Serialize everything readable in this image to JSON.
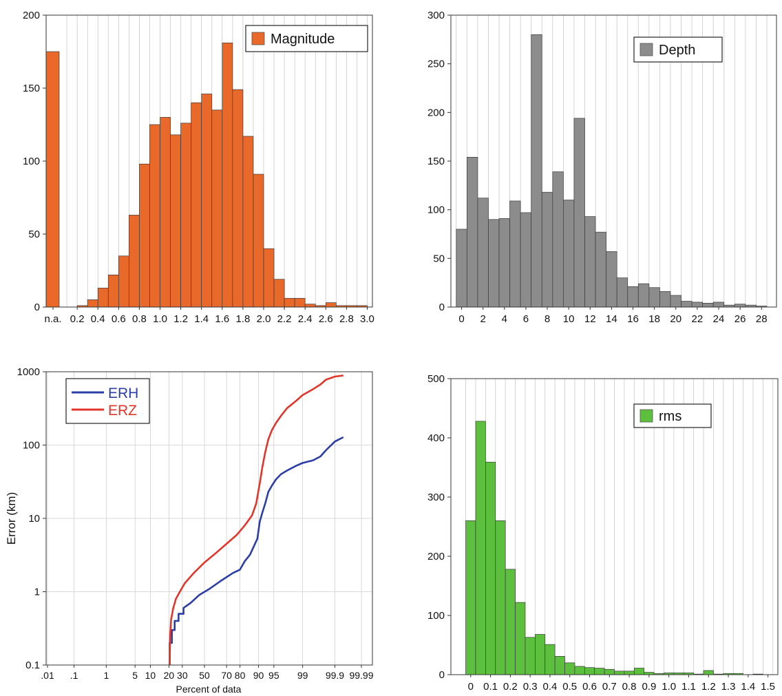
{
  "chart_data": [
    {
      "id": "magnitude",
      "type": "bar",
      "legend": {
        "label": "Magnitude",
        "color": "#E8692A",
        "position": "top-right"
      },
      "xticks": [
        "n.a.",
        "0.2",
        "0.4",
        "0.6",
        "0.8",
        "1.0",
        "1.2",
        "1.4",
        "1.6",
        "1.8",
        "2.0",
        "2.2",
        "2.4",
        "2.6",
        "2.8",
        "3.0"
      ],
      "ylim": [
        0,
        200
      ],
      "yticks": [
        "0",
        "50",
        "100",
        "150",
        "200"
      ],
      "grid": "vertical",
      "na_value": 175,
      "bins": [
        0.1,
        0.2,
        0.3,
        0.4,
        0.5,
        0.6,
        0.7,
        0.8,
        0.9,
        1.0,
        1.1,
        1.2,
        1.3,
        1.4,
        1.5,
        1.6,
        1.7,
        1.8,
        1.9,
        2.0,
        2.1,
        2.2,
        2.3,
        2.4,
        2.5,
        2.6,
        2.7,
        2.8,
        2.9
      ],
      "values": [
        0,
        1,
        5,
        13,
        22,
        35,
        63,
        98,
        125,
        130,
        118,
        126,
        140,
        146,
        135,
        181,
        149,
        117,
        91,
        40,
        19,
        6,
        6,
        2,
        1,
        3,
        1,
        1,
        1
      ]
    },
    {
      "id": "depth",
      "type": "bar",
      "legend": {
        "label": "Depth",
        "color": "#8C8C8C",
        "position": "top-right"
      },
      "xticks": [
        "0",
        "2",
        "4",
        "6",
        "8",
        "10",
        "12",
        "14",
        "16",
        "18",
        "20",
        "22",
        "24",
        "26",
        "28"
      ],
      "ylim": [
        0,
        300
      ],
      "yticks": [
        "0",
        "50",
        "100",
        "150",
        "200",
        "250",
        "300"
      ],
      "grid": "vertical",
      "bins": [
        0,
        1,
        2,
        3,
        4,
        5,
        6,
        7,
        8,
        9,
        10,
        11,
        12,
        13,
        14,
        15,
        16,
        17,
        18,
        19,
        20,
        21,
        22,
        23,
        24,
        25,
        26,
        27,
        28
      ],
      "values": [
        80,
        154,
        112,
        90,
        91,
        109,
        97,
        280,
        118,
        139,
        110,
        194,
        93,
        77,
        57,
        30,
        21,
        24,
        20,
        16,
        12,
        6,
        5,
        4,
        5,
        2,
        3,
        2,
        1
      ]
    },
    {
      "id": "errors",
      "type": "line",
      "ylabel": "Error (km)",
      "xlabel": "Percent of data",
      "yscale": "log",
      "ylim": [
        0.1,
        1000
      ],
      "yticks": [
        "0.1",
        "1",
        "10",
        "100",
        "1000"
      ],
      "xscale": "probability",
      "xticks": [
        ".01",
        ".1",
        "1",
        "5",
        "10",
        "20",
        "30",
        "50",
        "70",
        "80",
        "90",
        "95",
        "99",
        "99.9",
        "99.99"
      ],
      "xtick_values": [
        0.01,
        0.1,
        1,
        5,
        10,
        20,
        30,
        50,
        70,
        80,
        90,
        95,
        99,
        99.9,
        99.99
      ],
      "grid": "both",
      "legend_position": "top-left",
      "series": [
        {
          "name": "ERH",
          "color": "#2B3EA6",
          "x": [
            20.5,
            20.5,
            22,
            22,
            24,
            24,
            27,
            27,
            31,
            31,
            37,
            45,
            55,
            65,
            75,
            80,
            83,
            86,
            88,
            89.5,
            90.5,
            91.5,
            92.5,
            93.5,
            94.5,
            95.5,
            96.5,
            97.5,
            98.5,
            99,
            99.5,
            99.7,
            99.8,
            99.9,
            99.95
          ],
          "y": [
            0.1,
            0.2,
            0.2,
            0.3,
            0.3,
            0.4,
            0.4,
            0.5,
            0.5,
            0.6,
            0.7,
            0.9,
            1.1,
            1.4,
            1.8,
            2.0,
            2.6,
            3.2,
            4.2,
            5.3,
            9,
            12,
            16,
            23,
            28,
            34,
            40,
            45,
            52,
            57,
            62,
            70,
            85,
            112,
            128
          ]
        },
        {
          "name": "ERZ",
          "color": "#E2352A",
          "x": [
            20.5,
            20.8,
            21.5,
            23,
            25,
            28,
            32,
            40,
            50,
            60,
            70,
            78,
            83,
            87,
            89,
            90.5,
            91.5,
            92.5,
            93.5,
            94.5,
            95.5,
            96.5,
            97.5,
            98.5,
            99,
            99.5,
            99.7,
            99.8,
            99.9,
            99.95
          ],
          "y": [
            0.1,
            0.25,
            0.42,
            0.6,
            0.8,
            1.0,
            1.3,
            1.8,
            2.5,
            3.3,
            4.5,
            6.0,
            8.0,
            11,
            16,
            30,
            50,
            80,
            120,
            160,
            200,
            250,
            320,
            400,
            480,
            580,
            670,
            780,
            860,
            890
          ]
        }
      ]
    },
    {
      "id": "rms",
      "type": "bar",
      "legend": {
        "label": "rms",
        "color": "#5CBF3E",
        "position": "top-right"
      },
      "xticks": [
        "0",
        "0.1",
        "0.2",
        "0.3",
        "0.4",
        "0.5",
        "0.6",
        "0.7",
        "0.8",
        "0.9",
        "1.0",
        "1.1",
        "1.2",
        "1.3",
        "1.4",
        "1.5"
      ],
      "ylim": [
        0,
        500
      ],
      "yticks": [
        "0",
        "100",
        "200",
        "300",
        "400",
        "500"
      ],
      "grid": "vertical",
      "bins": [
        -0.025,
        0.025,
        0.075,
        0.125,
        0.175,
        0.225,
        0.275,
        0.325,
        0.375,
        0.425,
        0.475,
        0.525,
        0.575,
        0.625,
        0.675,
        0.725,
        0.775,
        0.825,
        0.875,
        0.925,
        0.975,
        1.025,
        1.075,
        1.125,
        1.175,
        1.225,
        1.275,
        1.325,
        1.375,
        1.425
      ],
      "values": [
        260,
        428,
        359,
        260,
        178,
        122,
        63,
        68,
        51,
        31,
        20,
        14,
        12,
        11,
        9,
        6,
        6,
        11,
        4,
        2,
        3,
        3,
        3,
        1,
        7,
        1,
        2,
        2,
        0,
        1
      ]
    }
  ]
}
